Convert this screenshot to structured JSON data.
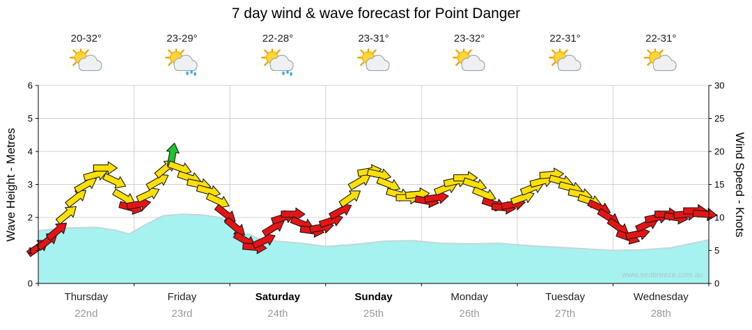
{
  "title": "7 day wind & wave forecast for Point Danger",
  "watermark": "www.seabreeze.com.au",
  "days": [
    {
      "name": "Thursday",
      "date": "22nd",
      "temp": "20-32°",
      "icon": "sun-cloud",
      "bold": false
    },
    {
      "name": "Friday",
      "date": "23rd",
      "temp": "23-29°",
      "icon": "sun-cloud-rain",
      "bold": false
    },
    {
      "name": "Saturday",
      "date": "24th",
      "temp": "22-28°",
      "icon": "sun-cloud-rain",
      "bold": true
    },
    {
      "name": "Sunday",
      "date": "25th",
      "temp": "23-31°",
      "icon": "sun-cloud",
      "bold": true
    },
    {
      "name": "Monday",
      "date": "26th",
      "temp": "23-32°",
      "icon": "sun-cloud",
      "bold": false
    },
    {
      "name": "Tuesday",
      "date": "27th",
      "temp": "22-31°",
      "icon": "sun-cloud",
      "bold": false
    },
    {
      "name": "Wednesday",
      "date": "28th",
      "temp": "22-31°",
      "icon": "sun-cloud",
      "bold": false
    }
  ],
  "chart_data": {
    "type": "area+wind-arrows",
    "x_range": [
      0,
      7
    ],
    "x_unit": "days",
    "left_axis": {
      "label": "Wave Height - Metres",
      "min": 0,
      "max": 6,
      "ticks": [
        0,
        1,
        2,
        3,
        4,
        5,
        6
      ]
    },
    "right_axis": {
      "label": "Wind Speed - Knots",
      "min": 0,
      "max": 30,
      "ticks": [
        0,
        5,
        10,
        15,
        20,
        25,
        30
      ]
    },
    "wave_series": {
      "name": "Wave Height (m)",
      "points": [
        [
          0.0,
          1.6
        ],
        [
          0.3,
          1.68
        ],
        [
          0.6,
          1.7
        ],
        [
          0.8,
          1.62
        ],
        [
          0.95,
          1.5
        ],
        [
          1.1,
          1.75
        ],
        [
          1.3,
          2.05
        ],
        [
          1.5,
          2.1
        ],
        [
          1.7,
          2.08
        ],
        [
          1.9,
          2.0
        ],
        [
          2.0,
          1.8
        ],
        [
          2.1,
          1.45
        ],
        [
          2.2,
          1.5
        ],
        [
          2.3,
          1.35
        ],
        [
          2.5,
          1.28
        ],
        [
          2.75,
          1.22
        ],
        [
          3.0,
          1.12
        ],
        [
          3.3,
          1.18
        ],
        [
          3.6,
          1.28
        ],
        [
          3.9,
          1.3
        ],
        [
          4.2,
          1.22
        ],
        [
          4.5,
          1.2
        ],
        [
          4.8,
          1.22
        ],
        [
          5.1,
          1.15
        ],
        [
          5.4,
          1.1
        ],
        [
          5.7,
          1.05
        ],
        [
          6.0,
          1.0
        ],
        [
          6.3,
          1.02
        ],
        [
          6.6,
          1.08
        ],
        [
          6.8,
          1.2
        ],
        [
          7.0,
          1.32
        ]
      ]
    },
    "wind_series": {
      "name": "Wind Speed (knots)",
      "point_format": [
        "t_days",
        "knots",
        "dir_deg",
        "color"
      ],
      "points": [
        [
          0.0,
          5.5,
          -35,
          "r"
        ],
        [
          0.1,
          6.5,
          -38,
          "r"
        ],
        [
          0.2,
          8.0,
          -40,
          "r"
        ],
        [
          0.3,
          10.5,
          -40,
          "y"
        ],
        [
          0.4,
          13.0,
          -38,
          "y"
        ],
        [
          0.5,
          15.0,
          -30,
          "y"
        ],
        [
          0.6,
          16.5,
          -15,
          "y"
        ],
        [
          0.7,
          17.5,
          0,
          "y"
        ],
        [
          0.8,
          15.5,
          25,
          "y"
        ],
        [
          0.9,
          13.0,
          30,
          "y"
        ],
        [
          0.97,
          11.5,
          15,
          "r"
        ],
        [
          1.05,
          12.0,
          -10,
          "r"
        ],
        [
          1.15,
          13.5,
          -25,
          "y"
        ],
        [
          1.25,
          15.5,
          -30,
          "y"
        ],
        [
          1.33,
          17.5,
          -40,
          "y"
        ],
        [
          1.4,
          19.5,
          -80,
          "g"
        ],
        [
          1.48,
          17.5,
          20,
          "y"
        ],
        [
          1.58,
          16.0,
          18,
          "y"
        ],
        [
          1.68,
          15.0,
          12,
          "y"
        ],
        [
          1.78,
          14.0,
          15,
          "y"
        ],
        [
          1.88,
          12.5,
          25,
          "y"
        ],
        [
          1.96,
          10.5,
          38,
          "r"
        ],
        [
          2.06,
          8.5,
          40,
          "r"
        ],
        [
          2.16,
          6.5,
          30,
          "r"
        ],
        [
          2.26,
          5.5,
          5,
          "r"
        ],
        [
          2.36,
          6.5,
          -25,
          "r"
        ],
        [
          2.46,
          8.5,
          -32,
          "r"
        ],
        [
          2.56,
          10.0,
          -18,
          "r"
        ],
        [
          2.66,
          10.5,
          0,
          "r"
        ],
        [
          2.76,
          9.0,
          22,
          "r"
        ],
        [
          2.86,
          8.0,
          8,
          "r"
        ],
        [
          2.96,
          8.5,
          -10,
          "r"
        ],
        [
          3.06,
          9.5,
          -18,
          "r"
        ],
        [
          3.16,
          11.0,
          -28,
          "r"
        ],
        [
          3.26,
          13.0,
          -35,
          "y"
        ],
        [
          3.36,
          15.5,
          -30,
          "y"
        ],
        [
          3.46,
          17.0,
          -10,
          "y"
        ],
        [
          3.56,
          16.5,
          12,
          "y"
        ],
        [
          3.66,
          15.0,
          22,
          "y"
        ],
        [
          3.76,
          13.5,
          15,
          "y"
        ],
        [
          3.86,
          13.0,
          0,
          "y"
        ],
        [
          3.96,
          13.5,
          -5,
          "y"
        ],
        [
          4.06,
          12.5,
          10,
          "r"
        ],
        [
          4.16,
          13.0,
          -8,
          "r"
        ],
        [
          4.26,
          14.5,
          -22,
          "y"
        ],
        [
          4.36,
          15.5,
          -12,
          "y"
        ],
        [
          4.46,
          16.0,
          0,
          "y"
        ],
        [
          4.56,
          15.0,
          18,
          "y"
        ],
        [
          4.66,
          13.5,
          22,
          "y"
        ],
        [
          4.76,
          12.0,
          18,
          "r"
        ],
        [
          4.86,
          11.5,
          5,
          "r"
        ],
        [
          4.96,
          12.0,
          -10,
          "r"
        ],
        [
          5.06,
          13.0,
          -20,
          "y"
        ],
        [
          5.16,
          14.5,
          -22,
          "y"
        ],
        [
          5.26,
          15.5,
          -15,
          "y"
        ],
        [
          5.36,
          16.5,
          -5,
          "y"
        ],
        [
          5.46,
          15.5,
          15,
          "y"
        ],
        [
          5.56,
          14.5,
          15,
          "y"
        ],
        [
          5.66,
          13.5,
          12,
          "y"
        ],
        [
          5.76,
          12.5,
          18,
          "y"
        ],
        [
          5.86,
          11.5,
          25,
          "r"
        ],
        [
          5.96,
          10.0,
          32,
          "r"
        ],
        [
          6.06,
          8.5,
          35,
          "r"
        ],
        [
          6.16,
          7.0,
          20,
          "r"
        ],
        [
          6.26,
          7.5,
          -12,
          "r"
        ],
        [
          6.36,
          9.0,
          -25,
          "r"
        ],
        [
          6.46,
          10.0,
          -12,
          "r"
        ],
        [
          6.56,
          10.5,
          0,
          "r"
        ],
        [
          6.66,
          10.0,
          8,
          "r"
        ],
        [
          6.76,
          10.5,
          -5,
          "r"
        ],
        [
          6.86,
          11.0,
          0,
          "r"
        ],
        [
          6.96,
          10.5,
          5,
          "r"
        ]
      ]
    },
    "colors": {
      "wave_fill": "#a6f2f0",
      "wave_line": "#c4d6da",
      "yellow": "#ffe000",
      "red": "#e51414",
      "green": "#1fc32b",
      "arrow_outline": "#161616",
      "grid": "#d0d0d0",
      "axis": "#000000",
      "day_label": "#222222",
      "day_label_bold": "#000000",
      "date_label": "#999999"
    }
  }
}
